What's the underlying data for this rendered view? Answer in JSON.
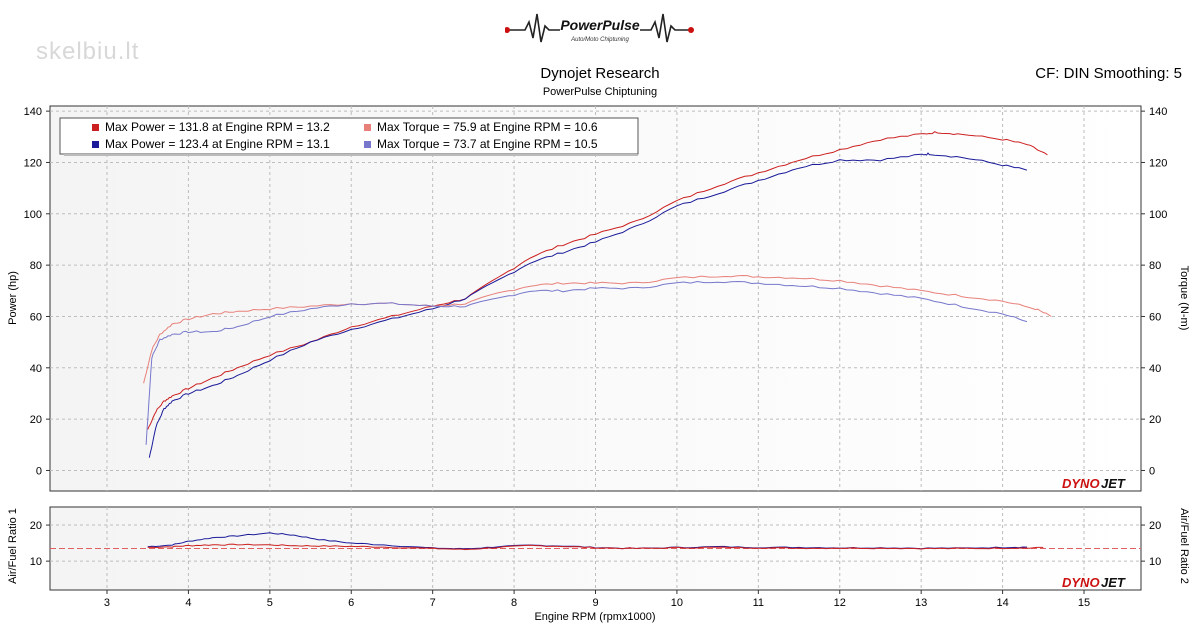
{
  "header": {
    "logo_text": "PowerPulse",
    "logo_tagline": "Auto/Moto Chiptuning",
    "watermark": "skelbiu.lt",
    "title": "Dynojet Research",
    "subtitle": "PowerPulse Chiptuning",
    "cf_info": "CF: DIN Smoothing: 5"
  },
  "branding": {
    "dyno_left": "DYNO",
    "dyno_right": "JET"
  },
  "legend": [
    {
      "text": "Max Power = 131.8 at Engine RPM = 13.2",
      "color": "#cc2020"
    },
    {
      "text": "Max Torque = 75.9 at Engine RPM = 10.6",
      "color": "#e8807a"
    },
    {
      "text": "Max Power = 123.4 at Engine RPM = 13.1",
      "color": "#1a1a9a"
    },
    {
      "text": "Max Torque = 73.7 at Engine RPM = 10.5",
      "color": "#7777cc"
    }
  ],
  "chart_data": [
    {
      "type": "line",
      "xlabel": "Engine RPM (rpmx1000)",
      "ylabel": "Power (hp)",
      "y2label": "Torque (N-m)",
      "xlim": [
        2.3,
        15.7
      ],
      "ylim": [
        -8,
        142
      ],
      "y2lim": [
        -8,
        142
      ],
      "x_ticks": [
        3,
        4,
        5,
        6,
        7,
        8,
        9,
        10,
        11,
        12,
        13,
        14,
        15
      ],
      "y_ticks": [
        0,
        20,
        40,
        60,
        80,
        100,
        120,
        140
      ],
      "y2_ticks": [
        0,
        20,
        40,
        60,
        80,
        100,
        120,
        140
      ],
      "grid": true,
      "legend_position": "top-left",
      "series": [
        {
          "axis": "y",
          "color": "#cc2020",
          "x": [
            3.5,
            3.6,
            3.7,
            3.8,
            4.0,
            4.3,
            4.6,
            5.0,
            5.5,
            6.0,
            6.5,
            7.0,
            7.4,
            7.8,
            8.2,
            8.6,
            9.0,
            9.5,
            10.0,
            10.5,
            11.0,
            11.5,
            12.0,
            12.5,
            13.0,
            13.2,
            13.5,
            14.0,
            14.3,
            14.55
          ],
          "y": [
            16,
            23,
            27,
            29,
            32,
            36,
            40,
            45,
            50,
            56,
            60,
            64,
            67,
            75,
            83,
            88,
            92,
            97,
            105,
            111,
            116,
            121,
            125,
            129,
            131,
            131.8,
            131,
            129,
            127,
            123
          ]
        },
        {
          "axis": "y",
          "color": "#1a1a9a",
          "x": [
            3.52,
            3.6,
            3.7,
            3.8,
            4.0,
            4.3,
            4.6,
            5.0,
            5.5,
            6.0,
            6.5,
            7.0,
            7.4,
            7.8,
            8.2,
            8.6,
            9.0,
            9.5,
            10.0,
            10.5,
            11.0,
            11.5,
            12.0,
            12.5,
            13.0,
            13.1,
            13.5,
            14.0,
            14.3
          ],
          "y": [
            5,
            17,
            24,
            27,
            30,
            33,
            37,
            43,
            50,
            55,
            59,
            63,
            67,
            74,
            81,
            85,
            89,
            95,
            103,
            108,
            113,
            118,
            121,
            121,
            123,
            123.4,
            122,
            119,
            117
          ]
        },
        {
          "axis": "y2",
          "color": "#e8807a",
          "x": [
            3.45,
            3.55,
            3.65,
            3.8,
            4.0,
            4.3,
            4.6,
            5.0,
            5.5,
            6.0,
            6.5,
            7.0,
            7.4,
            7.8,
            8.2,
            8.6,
            9.0,
            9.5,
            10.0,
            10.6,
            11.0,
            11.5,
            12.0,
            12.5,
            13.0,
            13.5,
            14.0,
            14.4,
            14.6
          ],
          "y": [
            34,
            47,
            53,
            57,
            59,
            61,
            62,
            63,
            64,
            65,
            65,
            64,
            65,
            69,
            72,
            73,
            73,
            73,
            75,
            75.9,
            75.5,
            75,
            74,
            72,
            70,
            68,
            66,
            63,
            60
          ]
        },
        {
          "axis": "y2",
          "color": "#7777cc",
          "x": [
            3.48,
            3.55,
            3.65,
            3.8,
            4.0,
            4.3,
            4.6,
            5.0,
            5.5,
            6.0,
            6.5,
            7.0,
            7.4,
            7.8,
            8.2,
            8.6,
            9.0,
            9.5,
            10.0,
            10.5,
            11.0,
            11.5,
            12.0,
            12.5,
            13.0,
            13.5,
            14.0,
            14.3
          ],
          "y": [
            10,
            44,
            51,
            53,
            54,
            54,
            56,
            60,
            63,
            65,
            65,
            64,
            64,
            67,
            70,
            70,
            71,
            71,
            73,
            73.7,
            73,
            72,
            71,
            69,
            67,
            64,
            61,
            58
          ]
        }
      ]
    },
    {
      "type": "line",
      "ylabel": "Air/Fuel Ratio 1",
      "y2label": "Air/Fuel Ratio 2",
      "xlim": [
        2.3,
        15.7
      ],
      "ylim": [
        2,
        25
      ],
      "y_ticks": [
        10,
        20
      ],
      "y2_ticks": [
        10,
        20
      ],
      "reference_line": 13.5,
      "grid": true,
      "series": [
        {
          "color": "#1a1a9a",
          "x": [
            3.5,
            3.8,
            4.0,
            4.3,
            4.6,
            5.0,
            5.3,
            5.6,
            6.0,
            6.4,
            7.0,
            7.4,
            7.8,
            8.2,
            8.6,
            9.0,
            9.5,
            10.0,
            10.5,
            11.0,
            11.5,
            12.0,
            12.5,
            13.0,
            13.5,
            14.0,
            14.3
          ],
          "y": [
            14,
            14.5,
            15.5,
            16.5,
            17,
            17.8,
            17.2,
            16,
            15,
            14.5,
            13.6,
            13.4,
            14,
            14.4,
            14.2,
            13.8,
            13.5,
            13.8,
            14,
            13.8,
            13.8,
            13.7,
            13.7,
            13.6,
            13.6,
            13.8,
            13.9
          ]
        },
        {
          "color": "#cc2020",
          "x": [
            3.5,
            3.8,
            4.0,
            4.3,
            4.6,
            5.0,
            5.3,
            5.6,
            6.0,
            6.4,
            7.0,
            7.4,
            7.8,
            8.2,
            8.6,
            9.0,
            9.5,
            10.0,
            10.5,
            11.0,
            11.5,
            12.0,
            12.5,
            13.0,
            13.5,
            14.0,
            14.5
          ],
          "y": [
            13.8,
            14,
            14.3,
            14.5,
            14.6,
            14.5,
            14.3,
            14.2,
            14.1,
            13.9,
            13.5,
            13.2,
            13.8,
            14.3,
            14.1,
            13.7,
            13.5,
            13.7,
            13.8,
            13.7,
            13.6,
            13.6,
            13.6,
            13.5,
            13.5,
            13.6,
            13.8
          ]
        }
      ]
    }
  ]
}
